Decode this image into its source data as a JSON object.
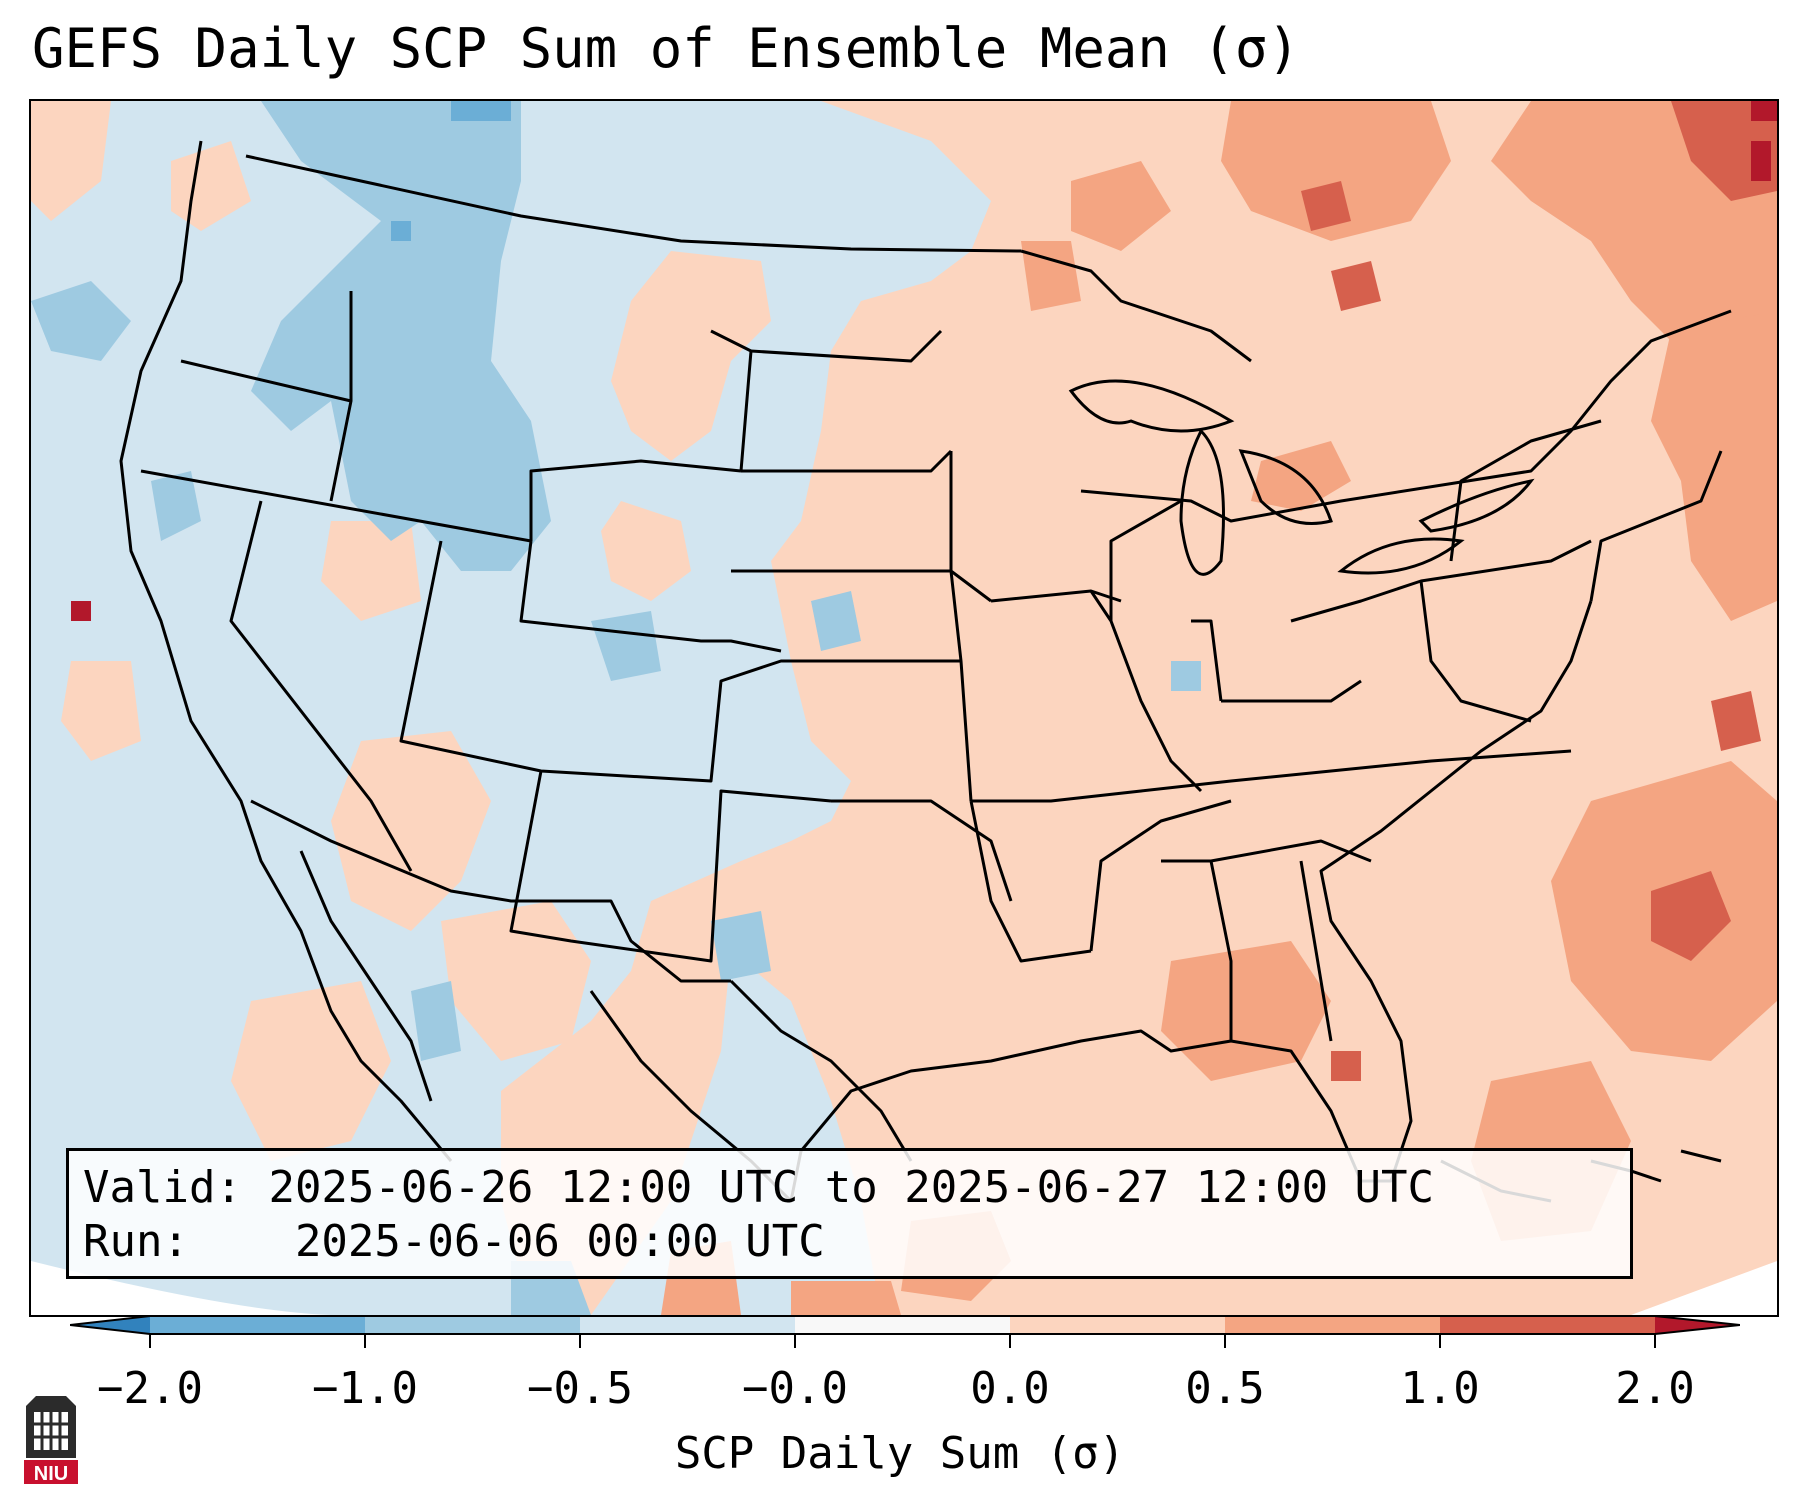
{
  "title": "GEFS Daily SCP Sum of Ensemble Mean (σ)",
  "info": {
    "valid_label": "Valid:",
    "valid_value": "2025-06-26 12:00 UTC to 2025-06-27 12:00 UTC",
    "run_label": "Run:",
    "run_value": "2025-06-06 00:00 UTC"
  },
  "colorbar": {
    "label": "SCP Daily Sum (σ)",
    "ticks": [
      "−2.0",
      "−1.0",
      "−0.5",
      "−0.0",
      "0.0",
      "0.5",
      "1.0",
      "2.0"
    ],
    "colors": [
      "#3182bd",
      "#6baed6",
      "#9ecae1",
      "#d2e5f0",
      "#f8f8f8",
      "#fcd5bf",
      "#f4a582",
      "#d6604d",
      "#b2182b"
    ]
  },
  "logo": {
    "text": "NIU"
  }
}
